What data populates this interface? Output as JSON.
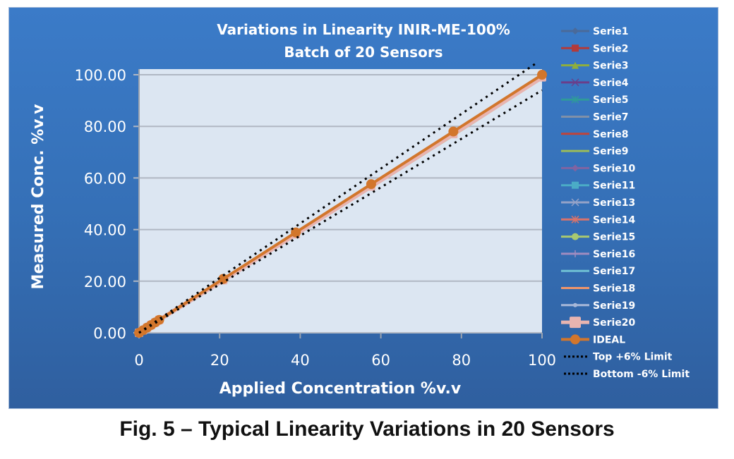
{
  "chart_data": {
    "type": "line",
    "title": "Variations in Linearity INIR-ME-100%",
    "subtitle": "Batch of 20 Sensors",
    "xlabel": "Applied Concentration %v.v",
    "ylabel": "Measured  Conc. %v.v",
    "xlim": [
      0,
      100
    ],
    "ylim": [
      0,
      100
    ],
    "x_ticks": [
      "0",
      "20",
      "40",
      "60",
      "80",
      "100"
    ],
    "y_ticks": [
      "0.00",
      "20.00",
      "40.00",
      "60.00",
      "80.00",
      "100.00"
    ],
    "grid": "horizontal",
    "legend_position": "right",
    "x": [
      0,
      1,
      2,
      3,
      4,
      5,
      20.9,
      38.9,
      57.6,
      78,
      100
    ],
    "series": [
      {
        "name": "Serie1",
        "color": "#4a6a9a",
        "marker": "diamond",
        "values": [
          0,
          1,
          2,
          3,
          4,
          5,
          20.6,
          38.4,
          57.0,
          77.3,
          99.3
        ]
      },
      {
        "name": "Serie2",
        "color": "#b23a3a",
        "marker": "square",
        "values": [
          0,
          1,
          2,
          3,
          4,
          5,
          20.8,
          38.7,
          57.4,
          77.8,
          99.7
        ]
      },
      {
        "name": "Serie3",
        "color": "#8fae3c",
        "marker": "triangle",
        "values": [
          0,
          1,
          2,
          3,
          4,
          5,
          20.3,
          37.9,
          56.3,
          76.5,
          98.6
        ]
      },
      {
        "name": "Serie4",
        "color": "#6a3e8a",
        "marker": "x",
        "values": [
          0,
          1,
          2,
          3,
          4,
          5,
          20.7,
          38.6,
          57.3,
          77.7,
          99.6
        ]
      },
      {
        "name": "Serie5",
        "color": "#2f9a9a",
        "marker": "star",
        "values": [
          0,
          1,
          2,
          3,
          4,
          5,
          20.5,
          38.3,
          56.9,
          77.2,
          99.2
        ]
      },
      {
        "name": "Serie7",
        "color": "#8090a8",
        "marker": "none",
        "values": [
          0,
          1,
          2,
          3,
          4,
          5,
          20.6,
          38.5,
          57.1,
          77.5,
          99.4
        ]
      },
      {
        "name": "Serie8",
        "color": "#c0443a",
        "marker": "none",
        "values": [
          0,
          1,
          2,
          3,
          4,
          5,
          20.8,
          38.8,
          57.5,
          77.9,
          99.8
        ]
      },
      {
        "name": "Serie9",
        "color": "#9bbb59",
        "marker": "none",
        "values": [
          0,
          1,
          2,
          3,
          4,
          5,
          20.2,
          37.8,
          56.2,
          76.4,
          98.5
        ]
      },
      {
        "name": "Serie10",
        "color": "#8064a2",
        "marker": "diamond",
        "values": [
          0,
          1,
          2,
          3,
          4,
          5,
          20.7,
          38.6,
          57.2,
          77.6,
          99.5
        ]
      },
      {
        "name": "Serie11",
        "color": "#4bacc6",
        "marker": "square",
        "values": [
          0,
          1,
          2,
          3,
          4,
          5,
          20.5,
          38.2,
          56.8,
          77.1,
          99.1
        ]
      },
      {
        "name": "Serie13",
        "color": "#95a3c8",
        "marker": "x",
        "values": [
          0,
          1,
          2,
          3,
          4,
          5,
          20.6,
          38.4,
          57.0,
          77.4,
          99.3
        ]
      },
      {
        "name": "Serie14",
        "color": "#d9736b",
        "marker": "star",
        "values": [
          0,
          1,
          2,
          3,
          4,
          5,
          20.7,
          38.7,
          57.3,
          77.7,
          99.6
        ]
      },
      {
        "name": "Serie15",
        "color": "#a9c970",
        "marker": "circle",
        "values": [
          0,
          1,
          2,
          3,
          4,
          5,
          20.4,
          38.1,
          56.6,
          76.9,
          98.9
        ]
      },
      {
        "name": "Serie16",
        "color": "#a08cc0",
        "marker": "plus",
        "values": [
          0,
          1,
          2,
          3,
          4,
          5,
          20.6,
          38.5,
          57.1,
          77.5,
          99.4
        ]
      },
      {
        "name": "Serie17",
        "color": "#6fc0d4",
        "marker": "none",
        "values": [
          0,
          1,
          2,
          3,
          4,
          5,
          20.5,
          38.3,
          56.9,
          77.2,
          99.2
        ]
      },
      {
        "name": "Serie18",
        "color": "#f0956a",
        "marker": "none",
        "values": [
          0,
          1,
          2,
          3,
          4,
          5,
          20.7,
          38.6,
          57.3,
          77.6,
          99.5
        ]
      },
      {
        "name": "Serie19",
        "color": "#a8b8d8",
        "marker": "dot",
        "values": [
          0,
          1,
          2,
          3,
          4,
          5,
          20.6,
          38.4,
          57.0,
          77.4,
          99.3
        ]
      },
      {
        "name": "Serie20",
        "color": "#e8b4b0",
        "marker": "big-square",
        "values": [
          0,
          1,
          2,
          3,
          4,
          5,
          20.4,
          38.2,
          56.7,
          77.0,
          99.0
        ]
      },
      {
        "name": "IDEAL",
        "color": "#d2762c",
        "marker": "circle",
        "values": [
          0,
          1,
          2,
          3,
          4,
          5,
          20.9,
          38.9,
          57.6,
          78,
          100
        ]
      },
      {
        "name": "Top +6% Limit",
        "color": "#000000",
        "marker": "dotted",
        "values": [
          0,
          1.06,
          2.12,
          3.18,
          4.24,
          5.3,
          22.2,
          41.2,
          61.1,
          82.7,
          106
        ]
      },
      {
        "name": "Bottom -6% Limit",
        "color": "#000000",
        "marker": "dotted",
        "values": [
          0,
          0.94,
          1.88,
          2.82,
          3.76,
          4.7,
          19.6,
          36.6,
          54.1,
          73.3,
          94
        ]
      }
    ]
  },
  "caption": "Fig. 5 – Typical Linearity Variations in 20 Sensors",
  "colors": {
    "frame_top": "#3b7bc8",
    "frame_bottom": "#2f5f9f",
    "plot_bg": "#dce6f2",
    "gridline": "#b0b7c3"
  }
}
